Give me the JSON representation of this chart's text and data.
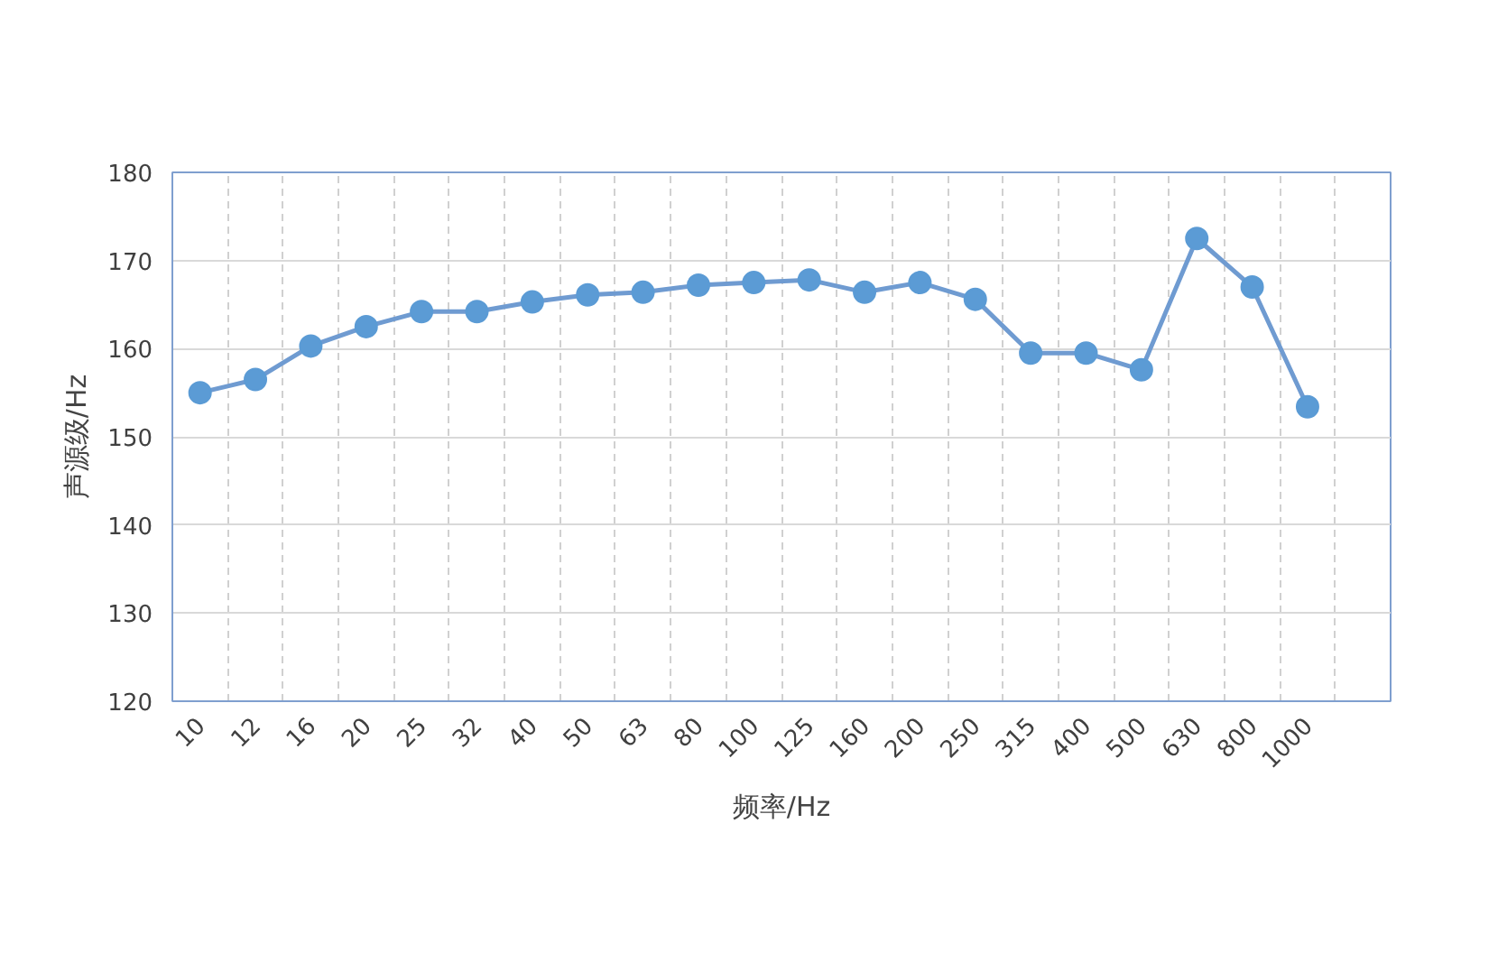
{
  "chart_data": {
    "type": "line",
    "xlabel": "频率/Hz",
    "ylabel": "声源级/Hz",
    "categories": [
      "10",
      "12",
      "16",
      "20",
      "25",
      "32",
      "40",
      "50",
      "63",
      "80",
      "100",
      "125",
      "160",
      "200",
      "250",
      "315",
      "400",
      "500",
      "630",
      "800",
      "1000",
      null
    ],
    "series": [
      {
        "color": "#6f9bd1",
        "values": [
          155,
          156.5,
          160.3,
          162.5,
          164.2,
          164.2,
          165.3,
          166.1,
          166.4,
          167.2,
          167.5,
          167.8,
          166.4,
          167.5,
          165.6,
          159.5,
          159.5,
          157.6,
          172.5,
          167,
          153.4,
          null
        ]
      }
    ],
    "ylim": [
      120,
      180
    ],
    "yticks": [
      120,
      130,
      140,
      150,
      160,
      170,
      180
    ],
    "grid": true,
    "marker": "circle",
    "line_style": "solid"
  }
}
